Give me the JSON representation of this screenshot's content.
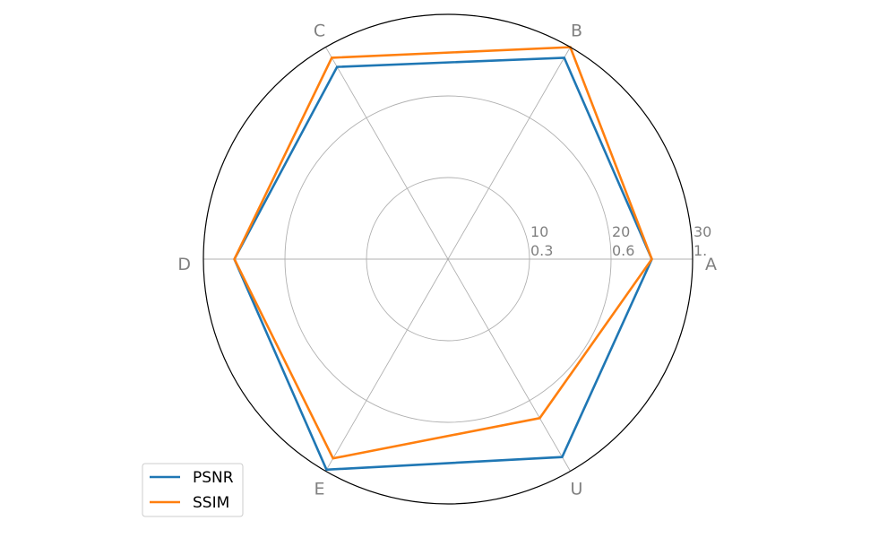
{
  "chart_data": {
    "type": "radar",
    "categories": [
      "A",
      "B",
      "C",
      "D",
      "E",
      "U"
    ],
    "radial_ticks": [
      {
        "psnr": "10",
        "ssim": "0.3"
      },
      {
        "psnr": "20",
        "ssim": "0.6"
      },
      {
        "psnr": "30",
        "ssim": "1."
      }
    ],
    "scale_max": 30,
    "grid": true,
    "legend_position": "lower-left",
    "series": [
      {
        "name": "PSNR",
        "color": "#1f77b4",
        "values": [
          25,
          28.5,
          27.2,
          26.2,
          29.8,
          28.0
        ]
      },
      {
        "name": "SSIM",
        "color": "#ff7f0e",
        "values": [
          25,
          30,
          28.5,
          26.2,
          28.2,
          22.5
        ]
      }
    ]
  }
}
